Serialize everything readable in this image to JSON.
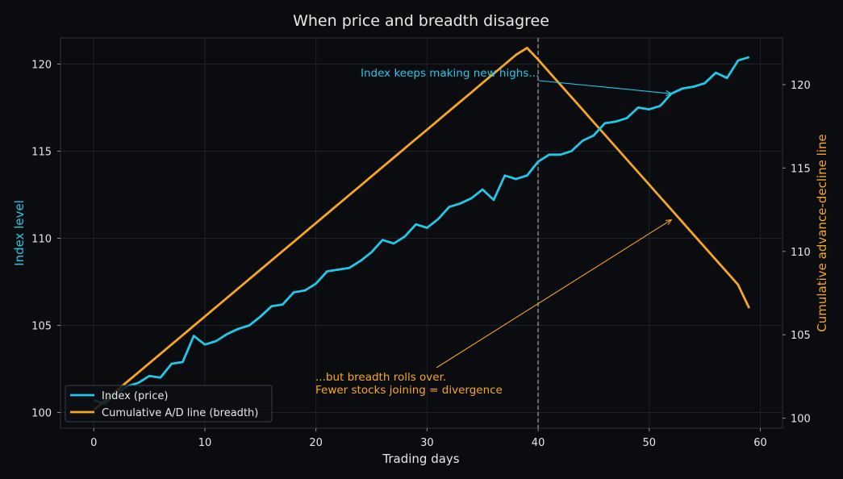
{
  "chart_data": {
    "type": "line",
    "title": "When price and breadth disagree",
    "xlabel": "Trading days",
    "ylabel_left": "Index level",
    "ylabel_right": "Cumulative advance-decline line",
    "xlim": [
      -3,
      62
    ],
    "ylim_left": [
      99.1,
      121.5
    ],
    "ylim_right": [
      99.4,
      122.8
    ],
    "x_ticks": [
      0,
      10,
      20,
      30,
      40,
      50,
      60
    ],
    "y_ticks_left": [
      100,
      105,
      110,
      115,
      120
    ],
    "y_ticks_right": [
      100,
      105,
      110,
      115,
      120
    ],
    "grid": true,
    "legend_position": "lower-left",
    "colors": {
      "price": "#22c8e6",
      "breadth": "#f5a623",
      "background": "#0b0c10",
      "vline": "#9a9a9a"
    },
    "x": [
      0,
      1,
      2,
      3,
      4,
      5,
      6,
      7,
      8,
      9,
      10,
      11,
      12,
      13,
      14,
      15,
      16,
      17,
      18,
      19,
      20,
      21,
      22,
      23,
      24,
      25,
      26,
      27,
      28,
      29,
      30,
      31,
      32,
      33,
      34,
      35,
      36,
      37,
      38,
      39,
      40,
      41,
      42,
      43,
      44,
      45,
      46,
      47,
      48,
      49,
      50,
      51,
      52,
      53,
      54,
      55,
      56,
      57,
      58,
      59
    ],
    "series": [
      {
        "name": "Index (price)",
        "axis": "left",
        "values": [
          100.7,
          100.5,
          101.1,
          101.5,
          101.7,
          102.1,
          102.0,
          102.8,
          102.9,
          104.4,
          103.9,
          104.1,
          104.5,
          104.8,
          105.0,
          105.5,
          106.1,
          106.2,
          106.9,
          107.0,
          107.4,
          108.1,
          108.2,
          108.3,
          108.7,
          109.2,
          109.9,
          109.7,
          110.1,
          110.8,
          110.6,
          111.1,
          111.8,
          112.0,
          112.3,
          112.8,
          112.2,
          113.6,
          113.4,
          113.6,
          114.4,
          114.8,
          114.8,
          115.0,
          115.6,
          115.9,
          116.6,
          116.7,
          116.9,
          117.5,
          117.4,
          117.6,
          118.3,
          118.6,
          118.7,
          118.9,
          119.5,
          119.2,
          120.2,
          120.4
        ]
      },
      {
        "name": "Cumulative A/D line (breadth)",
        "axis": "right",
        "values": [
          100.5,
          101.06,
          101.62,
          102.18,
          102.74,
          103.3,
          103.86,
          104.42,
          104.98,
          105.54,
          106.1,
          106.66,
          107.22,
          107.78,
          108.34,
          108.9,
          109.46,
          110.02,
          110.58,
          111.14,
          111.7,
          112.26,
          112.82,
          113.38,
          113.94,
          114.5,
          115.06,
          115.62,
          116.18,
          116.74,
          117.3,
          117.86,
          118.42,
          118.98,
          119.54,
          120.1,
          120.66,
          121.22,
          121.78,
          122.2,
          121.5,
          120.75,
          120.0,
          119.25,
          118.5,
          117.75,
          117.0,
          116.25,
          115.5,
          114.75,
          114.0,
          113.25,
          112.5,
          111.75,
          111.0,
          110.25,
          109.5,
          108.75,
          108.0,
          106.6
        ]
      }
    ],
    "vline_x": 40,
    "annotations": [
      {
        "text": "Index keeps making new highs...",
        "target_x": 52,
        "target_y": 118.3,
        "axis": "left"
      },
      {
        "text_lines": [
          "...but breadth rolls over.",
          "Fewer stocks joining = divergence"
        ],
        "target_x": 52,
        "target_y": 111.9,
        "axis": "right"
      }
    ]
  }
}
